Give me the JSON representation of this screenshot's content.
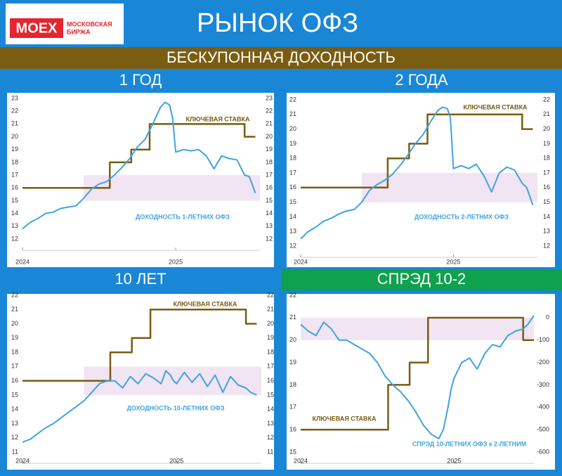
{
  "header": {
    "logo": {
      "brand": "MOEX",
      "line1": "МОСКОВСКАЯ",
      "line2": "БИРЖА"
    },
    "title": "РЫНОК ОФЗ",
    "subtitle": "БЕСКУПОННАЯ ДОХОДНОСТЬ"
  },
  "chart_data": [
    {
      "type": "line",
      "title": "1 ГОД",
      "xlim": [
        2024,
        2025.55
      ],
      "xticks": [
        2024,
        2025
      ],
      "ylim": [
        12,
        23
      ],
      "yticks": [
        12,
        13,
        14,
        15,
        16,
        17,
        18,
        19,
        20,
        21,
        22,
        23
      ],
      "band": {
        "x": [
          2024.4,
          2025.55
        ],
        "y": [
          15,
          17
        ],
        "color": "#f1e4f3"
      },
      "series": [
        {
          "name": "КЛЮЧЕВАЯ СТАВКА",
          "color": "#7a5c12",
          "x": [
            2024,
            2024.57,
            2024.57,
            2024.71,
            2024.71,
            2024.83,
            2024.83,
            2025.45,
            2025.45,
            2025.52
          ],
          "values": [
            16,
            16,
            18,
            18,
            19,
            19,
            21,
            21,
            20,
            20
          ]
        },
        {
          "name": "ДОХОДНОСТЬ 1-ЛЕТНИХ ОФЗ",
          "color": "#3fa3e0",
          "x": [
            2024,
            2024.05,
            2024.1,
            2024.15,
            2024.2,
            2024.25,
            2024.3,
            2024.35,
            2024.4,
            2024.45,
            2024.5,
            2024.55,
            2024.6,
            2024.65,
            2024.7,
            2024.75,
            2024.8,
            2024.85,
            2024.9,
            2024.93,
            2024.96,
            2024.98,
            2025.0,
            2025.05,
            2025.1,
            2025.15,
            2025.2,
            2025.25,
            2025.3,
            2025.35,
            2025.4,
            2025.45,
            2025.48,
            2025.52
          ],
          "values": [
            12.8,
            13.3,
            13.6,
            14.0,
            14.1,
            14.4,
            14.5,
            14.6,
            15.2,
            15.9,
            16.3,
            16.5,
            17.0,
            17.6,
            18.3,
            19.2,
            19.8,
            21.0,
            22.3,
            22.7,
            22.5,
            21.5,
            18.8,
            19.0,
            18.9,
            19.0,
            18.5,
            17.5,
            18.5,
            18.3,
            18.2,
            17.0,
            16.9,
            15.6
          ]
        }
      ]
    },
    {
      "type": "line",
      "title": "2 ГОДА",
      "xlim": [
        2024,
        2025.55
      ],
      "xticks": [
        2024,
        2025
      ],
      "ylim": [
        12,
        22
      ],
      "yticks": [
        12,
        13,
        14,
        15,
        16,
        17,
        18,
        19,
        20,
        21,
        22
      ],
      "band": {
        "x": [
          2024.4,
          2025.55
        ],
        "y": [
          15,
          17
        ],
        "color": "#f1e4f3"
      },
      "series": [
        {
          "name": "КЛЮЧЕВАЯ СТАВКА",
          "color": "#7a5c12",
          "x": [
            2024,
            2024.57,
            2024.57,
            2024.71,
            2024.71,
            2024.83,
            2024.83,
            2025.45,
            2025.45,
            2025.52
          ],
          "values": [
            16,
            16,
            18,
            18,
            19,
            19,
            21,
            21,
            20,
            20
          ]
        },
        {
          "name": "ДОХОДНОСТЬ 2-ЛЕТНИХ ОФЗ",
          "color": "#3fa3e0",
          "x": [
            2024,
            2024.05,
            2024.1,
            2024.15,
            2024.2,
            2024.25,
            2024.3,
            2024.35,
            2024.4,
            2024.45,
            2024.5,
            2024.55,
            2024.6,
            2024.65,
            2024.7,
            2024.75,
            2024.8,
            2024.85,
            2024.9,
            2024.93,
            2024.96,
            2024.98,
            2025.0,
            2025.05,
            2025.1,
            2025.15,
            2025.2,
            2025.25,
            2025.3,
            2025.35,
            2025.4,
            2025.45,
            2025.48,
            2025.52
          ],
          "values": [
            12.5,
            13.0,
            13.3,
            13.7,
            13.9,
            14.2,
            14.4,
            14.5,
            15.0,
            15.8,
            16.2,
            16.5,
            16.9,
            17.5,
            18.2,
            19.0,
            19.6,
            20.5,
            21.3,
            21.5,
            21.4,
            20.8,
            17.3,
            17.5,
            17.3,
            17.6,
            16.8,
            15.7,
            17.0,
            17.4,
            17.2,
            16.3,
            16.0,
            14.8
          ]
        }
      ]
    },
    {
      "type": "line",
      "title": "10 ЛЕТ",
      "xlim": [
        2024,
        2025.55
      ],
      "xticks": [
        2024,
        2025
      ],
      "ylim": [
        11,
        22
      ],
      "yticks": [
        11,
        12,
        13,
        14,
        15,
        16,
        17,
        18,
        19,
        20,
        21,
        22
      ],
      "band": {
        "x": [
          2024.4,
          2025.55
        ],
        "y": [
          15,
          17
        ],
        "color": "#f1e4f3"
      },
      "series": [
        {
          "name": "КЛЮЧЕВАЯ СТАВКА",
          "color": "#7a5c12",
          "x": [
            2024,
            2024.57,
            2024.57,
            2024.71,
            2024.71,
            2024.83,
            2024.83,
            2025.45,
            2025.45,
            2025.52
          ],
          "values": [
            16,
            16,
            18,
            18,
            19,
            19,
            21,
            21,
            20,
            20
          ]
        },
        {
          "name": "ДОХОДНОСТЬ 10-ЛЕТНИХ ОФЗ",
          "color": "#3fa3e0",
          "x": [
            2024,
            2024.05,
            2024.1,
            2024.15,
            2024.2,
            2024.25,
            2024.3,
            2024.35,
            2024.4,
            2024.45,
            2024.5,
            2024.55,
            2024.6,
            2024.65,
            2024.7,
            2024.75,
            2024.8,
            2024.85,
            2024.9,
            2024.93,
            2024.96,
            2024.98,
            2025.0,
            2025.05,
            2025.1,
            2025.15,
            2025.2,
            2025.25,
            2025.3,
            2025.35,
            2025.4,
            2025.45,
            2025.48,
            2025.52
          ],
          "values": [
            11.7,
            11.9,
            12.3,
            12.7,
            13.0,
            13.4,
            13.8,
            14.2,
            14.6,
            15.2,
            15.8,
            16.0,
            16.0,
            15.5,
            16.3,
            15.8,
            16.5,
            16.2,
            15.8,
            16.7,
            16.4,
            16.0,
            15.8,
            16.6,
            15.9,
            16.5,
            15.6,
            16.4,
            15.2,
            16.3,
            15.7,
            15.5,
            15.2,
            15.0
          ]
        }
      ]
    },
    {
      "type": "line",
      "title": "СПРЭД 10-2",
      "xlim": [
        2024,
        2025.52
      ],
      "xticks": [
        2024,
        2025
      ],
      "ylim": [
        15,
        22
      ],
      "yticks": [
        15,
        16,
        17,
        18,
        19,
        20,
        21,
        22
      ],
      "y2lim": [
        -600,
        100
      ],
      "y2ticks": [
        -600,
        -500,
        -400,
        -300,
        -200,
        -100,
        0
      ],
      "band": {
        "x": [
          2024,
          2025.52
        ],
        "y": [
          20,
          21
        ],
        "color": "#f1e4f3"
      },
      "series": [
        {
          "name": "КЛЮЧЕВАЯ СТАВКА",
          "color": "#7a5c12",
          "x": [
            2024,
            2024.57,
            2024.57,
            2024.71,
            2024.71,
            2024.83,
            2024.83,
            2025.45,
            2025.45,
            2025.52
          ],
          "values": [
            16,
            16,
            18,
            18,
            19,
            19,
            21,
            21,
            20,
            20
          ]
        },
        {
          "name": "СПРЭД 10-ЛЕТНИХ ОФЗ к 2-ЛЕТНИМ",
          "color": "#3fa3e0",
          "axis": "y2",
          "x": [
            2024,
            2024.05,
            2024.1,
            2024.15,
            2024.2,
            2024.25,
            2024.3,
            2024.35,
            2024.4,
            2024.45,
            2024.5,
            2024.55,
            2024.6,
            2024.65,
            2024.7,
            2024.75,
            2024.8,
            2024.85,
            2024.9,
            2024.93,
            2024.96,
            2024.98,
            2025.0,
            2025.05,
            2025.1,
            2025.15,
            2025.2,
            2025.25,
            2025.3,
            2025.35,
            2025.4,
            2025.45,
            2025.48,
            2025.52
          ],
          "values": [
            -30,
            -60,
            -80,
            -20,
            -50,
            -100,
            -100,
            -120,
            -140,
            -160,
            -200,
            -260,
            -300,
            -330,
            -370,
            -420,
            -480,
            -520,
            -540,
            -500,
            -400,
            -320,
            -270,
            -200,
            -180,
            -230,
            -160,
            -120,
            -130,
            -80,
            -60,
            -50,
            -30,
            10
          ]
        }
      ]
    }
  ]
}
